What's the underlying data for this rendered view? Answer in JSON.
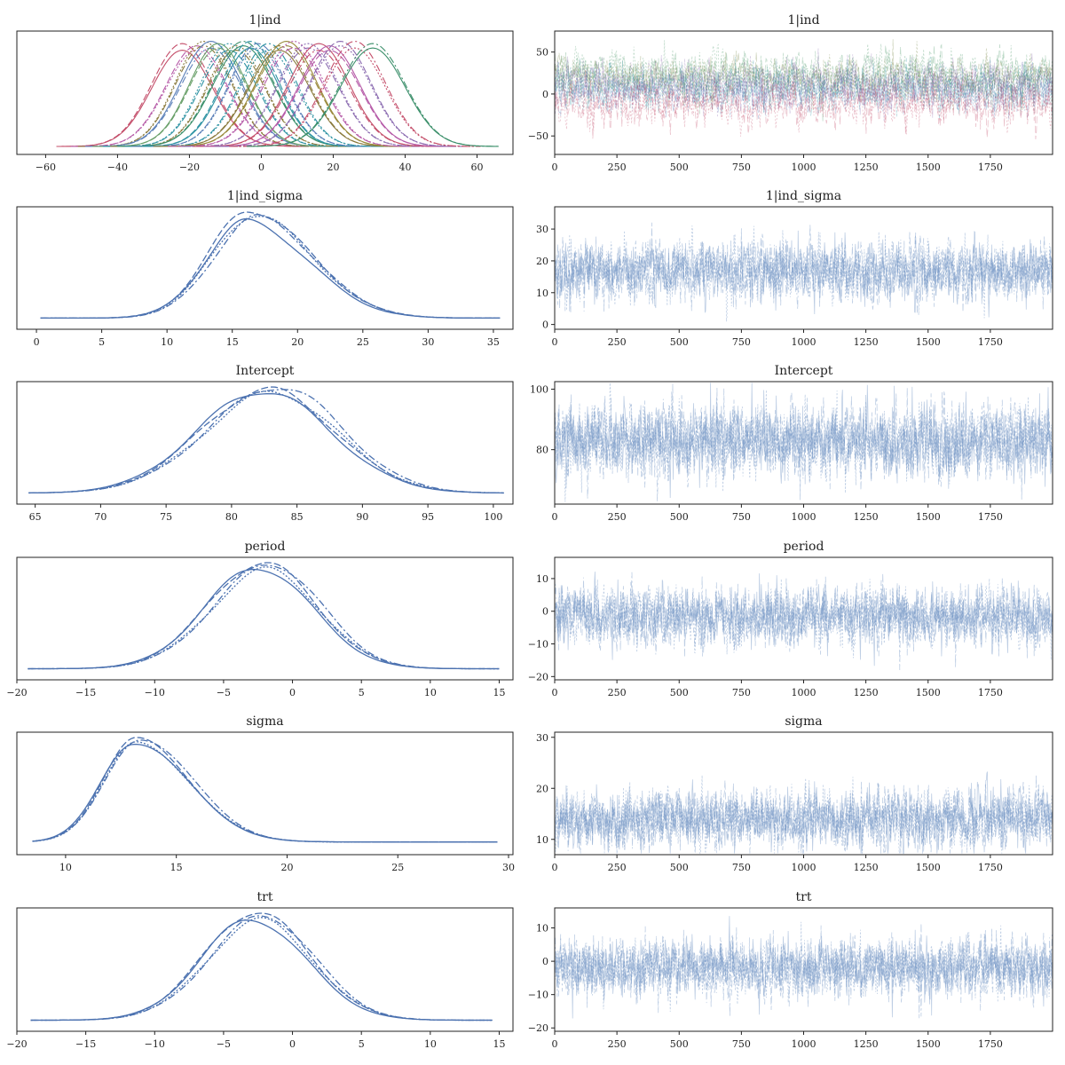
{
  "chart_data": [
    {
      "id": "ind_density",
      "type": "line",
      "title": "1|ind",
      "kind": "density",
      "xlim": [
        -68,
        70
      ],
      "xticks": [
        -60,
        -40,
        -20,
        0,
        20,
        40,
        60
      ],
      "groups": [
        {
          "mu": -22,
          "sd": 8.5,
          "color": "#c44e6a"
        },
        {
          "mu": -18,
          "sd": 8.5,
          "color": "#b65ba8"
        },
        {
          "mu": -16,
          "sd": 8.0,
          "color": "#8a7a3c"
        },
        {
          "mu": -14,
          "sd": 8.5,
          "color": "#5a7fb8"
        },
        {
          "mu": -12,
          "sd": 8.0,
          "color": "#6aa06a"
        },
        {
          "mu": -9,
          "sd": 8.0,
          "color": "#2e93a3"
        },
        {
          "mu": -7,
          "sd": 8.0,
          "color": "#8a7a3c"
        },
        {
          "mu": -5,
          "sd": 8.5,
          "color": "#3b8f6a"
        },
        {
          "mu": -3,
          "sd": 8.0,
          "color": "#2e93a3"
        },
        {
          "mu": -1,
          "sd": 8.0,
          "color": "#5a7fb8"
        },
        {
          "mu": 2,
          "sd": 8.0,
          "color": "#2e93a3"
        },
        {
          "mu": 5,
          "sd": 8.5,
          "color": "#8a7a3c"
        },
        {
          "mu": 7,
          "sd": 8.5,
          "color": "#9a8a3c"
        },
        {
          "mu": 9,
          "sd": 8.5,
          "color": "#b65ba8"
        },
        {
          "mu": 13,
          "sd": 8.5,
          "color": "#8a6ab0"
        },
        {
          "mu": 16,
          "sd": 8.5,
          "color": "#c44e6a"
        },
        {
          "mu": 19,
          "sd": 8.5,
          "color": "#b65ba8"
        },
        {
          "mu": 22,
          "sd": 8.5,
          "color": "#8a6ab0"
        },
        {
          "mu": 26,
          "sd": 8.5,
          "color": "#c44e6a"
        },
        {
          "mu": 31,
          "sd": 9.0,
          "color": "#3b8f6a"
        }
      ]
    },
    {
      "id": "ind_trace",
      "type": "line",
      "title": "1|ind",
      "kind": "trace",
      "xlim": [
        0,
        2000
      ],
      "xticks": [
        0,
        250,
        500,
        750,
        1000,
        1250,
        1500,
        1750
      ],
      "ylim": [
        -72,
        75
      ],
      "yticks": [
        -50,
        0,
        50
      ],
      "bands": [
        {
          "mean": 26,
          "sd": 12,
          "color": "#4f9a6e"
        },
        {
          "mean": 18,
          "sd": 12,
          "color": "#7a8a4a"
        },
        {
          "mean": 8,
          "sd": 12,
          "color": "#2e93a3"
        },
        {
          "mean": 3,
          "sd": 11,
          "color": "#5a7fb8"
        },
        {
          "mean": 12,
          "sd": 12,
          "color": "#8a6ab0"
        },
        {
          "mean": -12,
          "sd": 12,
          "color": "#c44e6a"
        }
      ]
    },
    {
      "id": "sigma_ind_density",
      "type": "line",
      "title": "1|ind_sigma",
      "kind": "density",
      "xlim": [
        -1.5,
        36.5
      ],
      "xticks": [
        0,
        5,
        10,
        15,
        20,
        25,
        30,
        35
      ],
      "range": [
        0.3,
        35.5
      ],
      "mode": 16.5,
      "sdl": 3.2,
      "sdr": 4.5,
      "tail": 0.005
    },
    {
      "id": "sigma_ind_trace",
      "type": "line",
      "title": "1|ind_sigma",
      "kind": "trace",
      "xlim": [
        0,
        2000
      ],
      "xticks": [
        0,
        250,
        500,
        750,
        1000,
        1250,
        1500,
        1750
      ],
      "ylim": [
        -1.5,
        37
      ],
      "yticks": [
        0,
        10,
        20,
        30
      ],
      "mean": 17,
      "sd": 4.2
    },
    {
      "id": "intercept_density",
      "type": "line",
      "title": "Intercept",
      "kind": "density",
      "xlim": [
        63.6,
        101.5
      ],
      "xticks": [
        65,
        70,
        75,
        80,
        85,
        90,
        95,
        100
      ],
      "range": [
        64.5,
        100.8
      ],
      "mode": 83,
      "sdl": 5.2,
      "sdr": 5.0,
      "tail": 0.003
    },
    {
      "id": "intercept_trace",
      "type": "line",
      "title": "Intercept",
      "kind": "trace",
      "xlim": [
        0,
        2000
      ],
      "xticks": [
        0,
        250,
        500,
        750,
        1000,
        1250,
        1500,
        1750
      ],
      "ylim": [
        62,
        102.5
      ],
      "yticks": [
        80,
        100
      ],
      "mean": 83,
      "sd": 5.5
    },
    {
      "id": "period_density",
      "type": "line",
      "title": "period",
      "kind": "density",
      "xlim": [
        -20,
        16
      ],
      "xticks": [
        -20,
        -15,
        -10,
        -5,
        0,
        5,
        10,
        15
      ],
      "range": [
        -19.2,
        15
      ],
      "mode": -2,
      "sdl": 4.0,
      "sdr": 3.8,
      "tail": 0.004
    },
    {
      "id": "period_trace",
      "type": "line",
      "title": "period",
      "kind": "trace",
      "xlim": [
        0,
        2000
      ],
      "xticks": [
        0,
        250,
        500,
        750,
        1000,
        1250,
        1500,
        1750
      ],
      "ylim": [
        -21,
        16.5
      ],
      "yticks": [
        -20,
        -10,
        0,
        10
      ],
      "mean": -1.5,
      "sd": 4.0
    },
    {
      "id": "sigma_density",
      "type": "line",
      "title": "sigma",
      "kind": "density",
      "xlim": [
        7.8,
        30.2
      ],
      "xticks": [
        10,
        15,
        20,
        25,
        30
      ],
      "range": [
        8.5,
        29.5
      ],
      "mode": 13.2,
      "sdl": 1.5,
      "sdr": 2.4,
      "tail": 0.02
    },
    {
      "id": "sigma_trace",
      "type": "line",
      "title": "sigma",
      "kind": "trace",
      "xlim": [
        0,
        2000
      ],
      "xticks": [
        0,
        250,
        500,
        750,
        1000,
        1250,
        1500,
        1750
      ],
      "ylim": [
        7,
        31
      ],
      "yticks": [
        10,
        20,
        30
      ],
      "mean": 14,
      "sd": 2.6
    },
    {
      "id": "trt_density",
      "type": "line",
      "title": "trt",
      "kind": "density",
      "xlim": [
        -20,
        16
      ],
      "xticks": [
        -20,
        -15,
        -10,
        -5,
        0,
        5,
        10,
        15
      ],
      "range": [
        -19,
        14.5
      ],
      "mode": -2.5,
      "sdl": 3.8,
      "sdr": 3.8,
      "tail": 0.004
    },
    {
      "id": "trt_trace",
      "type": "line",
      "title": "trt",
      "kind": "trace",
      "xlim": [
        0,
        2000
      ],
      "xticks": [
        0,
        250,
        500,
        750,
        1000,
        1250,
        1500,
        1750
      ],
      "ylim": [
        -21,
        16
      ],
      "yticks": [
        -20,
        -10,
        0,
        10
      ],
      "mean": -2,
      "sd": 4.0
    }
  ],
  "colors": {
    "single_series": "#4c72b0",
    "trace_series": "#6f93c4",
    "frame": "#222222"
  }
}
